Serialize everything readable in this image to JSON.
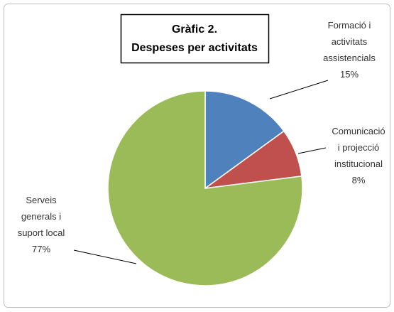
{
  "chart_data": {
    "type": "pie",
    "title": "Gràfic 2.",
    "subtitle": "Despeses per activitats",
    "categories": [
      "Formació i\nactivitats\nassistencials",
      "Comunicació\ni projecció\ninstitucional",
      "Serveis\ngenerals i\nsuport local"
    ],
    "values": [
      15,
      8,
      77
    ],
    "value_labels": [
      "15%",
      "8%",
      "77%"
    ],
    "colors": [
      "#4f81bd",
      "#c0504d",
      "#9bbb59"
    ]
  }
}
